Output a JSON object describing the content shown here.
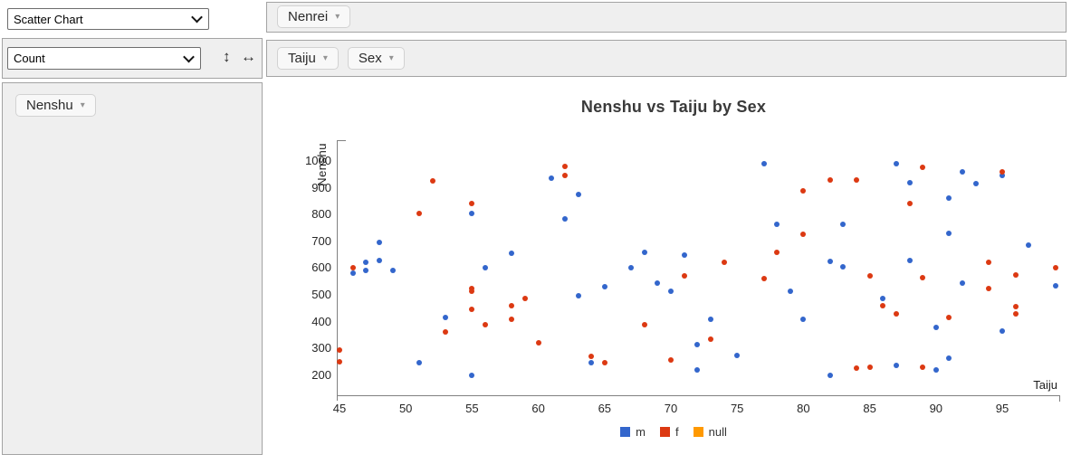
{
  "controls": {
    "renderer": {
      "value": "Scatter Chart"
    },
    "aggregator": {
      "value": "Count"
    },
    "row_order_label": "↕",
    "col_order_label": "↔"
  },
  "attr_caret": "▾",
  "unused_attrs": [
    "Nenrei"
  ],
  "col_attrs": [
    "Taiju",
    "Sex"
  ],
  "row_attrs": [
    "Nenshu"
  ],
  "chart_data": {
    "type": "scatter",
    "title": "Nenshu vs Taiju by Sex",
    "xlabel": "Taiju",
    "ylabel": "Nenshu",
    "x_ticks": [
      45,
      50,
      55,
      60,
      65,
      70,
      75,
      80,
      85,
      90,
      95
    ],
    "y_ticks": [
      200,
      300,
      400,
      500,
      600,
      700,
      800,
      900,
      1000
    ],
    "xlim": [
      44.8,
      99.5
    ],
    "ylim": [
      125,
      1075
    ],
    "grid": false,
    "legend_position": "bottom",
    "legend": [
      {
        "name": "m",
        "color": "#3366cc"
      },
      {
        "name": "f",
        "color": "#dc3912"
      },
      {
        "name": "null",
        "color": "#ff9900"
      }
    ],
    "series": [
      {
        "name": "m",
        "color": "#3366cc",
        "points": [
          [
            46,
            580
          ],
          [
            47,
            620
          ],
          [
            47,
            590
          ],
          [
            48,
            695
          ],
          [
            48,
            630
          ],
          [
            49,
            590
          ],
          [
            51,
            245
          ],
          [
            53,
            415
          ],
          [
            55,
            805
          ],
          [
            55,
            200
          ],
          [
            56,
            600
          ],
          [
            58,
            655
          ],
          [
            61,
            935
          ],
          [
            62,
            785
          ],
          [
            63,
            875
          ],
          [
            63,
            495
          ],
          [
            64,
            245
          ],
          [
            65,
            530
          ],
          [
            67,
            600
          ],
          [
            68,
            660
          ],
          [
            69,
            545
          ],
          [
            70,
            515
          ],
          [
            71,
            650
          ],
          [
            72,
            315
          ],
          [
            72,
            220
          ],
          [
            73,
            410
          ],
          [
            75,
            275
          ],
          [
            77,
            990
          ],
          [
            78,
            765
          ],
          [
            79,
            515
          ],
          [
            80,
            410
          ],
          [
            82,
            625
          ],
          [
            82,
            200
          ],
          [
            83,
            605
          ],
          [
            83,
            765
          ],
          [
            86,
            485
          ],
          [
            87,
            990
          ],
          [
            87,
            235
          ],
          [
            88,
            920
          ],
          [
            88,
            630
          ],
          [
            90,
            380
          ],
          [
            90,
            220
          ],
          [
            91,
            860
          ],
          [
            91,
            730
          ],
          [
            91,
            265
          ],
          [
            92,
            960
          ],
          [
            92,
            545
          ],
          [
            93,
            915
          ],
          [
            95,
            945
          ],
          [
            95,
            365
          ],
          [
            97,
            685
          ],
          [
            99,
            535
          ]
        ]
      },
      {
        "name": "f",
        "color": "#dc3912",
        "points": [
          [
            45,
            295
          ],
          [
            45,
            250
          ],
          [
            46,
            600
          ],
          [
            51,
            805
          ],
          [
            52,
            925
          ],
          [
            53,
            360
          ],
          [
            55,
            840
          ],
          [
            55,
            525
          ],
          [
            55,
            515
          ],
          [
            55,
            445
          ],
          [
            56,
            390
          ],
          [
            58,
            460
          ],
          [
            58,
            410
          ],
          [
            59,
            485
          ],
          [
            60,
            320
          ],
          [
            62,
            980
          ],
          [
            62,
            945
          ],
          [
            64,
            270
          ],
          [
            65,
            245
          ],
          [
            68,
            390
          ],
          [
            70,
            255
          ],
          [
            71,
            570
          ],
          [
            73,
            335
          ],
          [
            74,
            620
          ],
          [
            77,
            560
          ],
          [
            78,
            660
          ],
          [
            80,
            890
          ],
          [
            80,
            725
          ],
          [
            82,
            930
          ],
          [
            84,
            930
          ],
          [
            84,
            225
          ],
          [
            85,
            570
          ],
          [
            85,
            230
          ],
          [
            86,
            460
          ],
          [
            87,
            430
          ],
          [
            88,
            840
          ],
          [
            89,
            975
          ],
          [
            89,
            565
          ],
          [
            89,
            230
          ],
          [
            91,
            415
          ],
          [
            94,
            620
          ],
          [
            94,
            525
          ],
          [
            95,
            960
          ],
          [
            96,
            575
          ],
          [
            96,
            455
          ],
          [
            96,
            430
          ],
          [
            99,
            600
          ]
        ]
      },
      {
        "name": "null",
        "color": "#ff9900",
        "points": []
      }
    ]
  }
}
